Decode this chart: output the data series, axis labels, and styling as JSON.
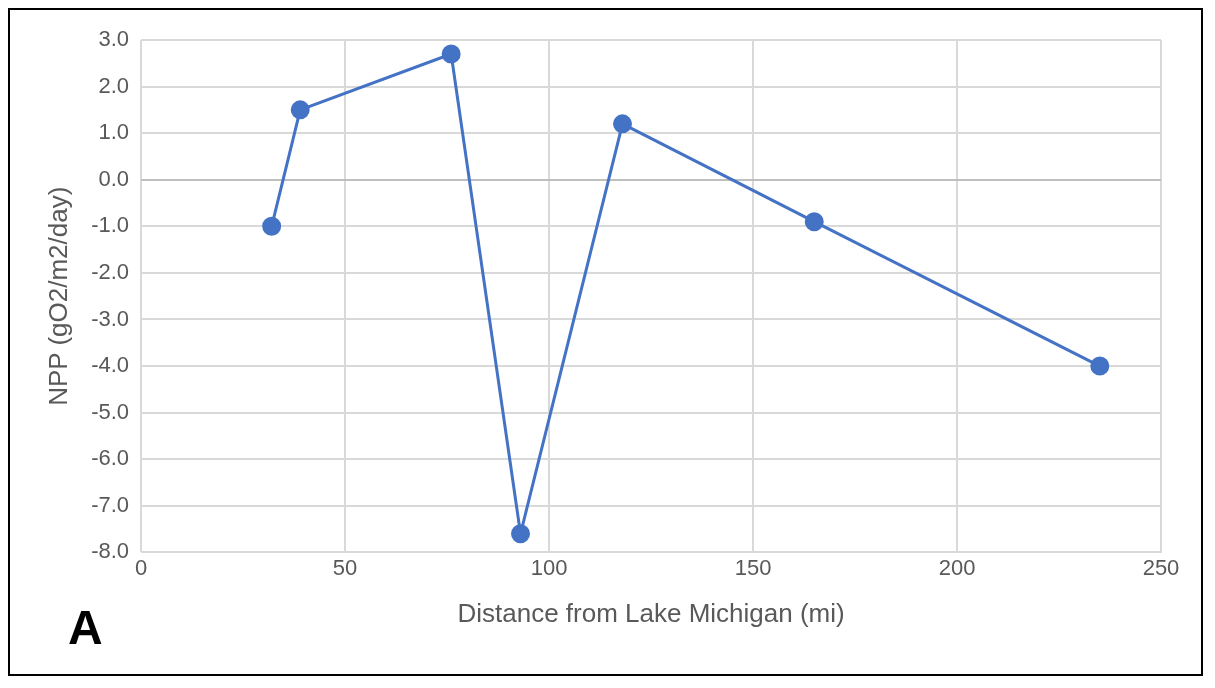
{
  "chart_data": {
    "type": "line",
    "xlabel": "Distance from Lake Michigan (mi)",
    "ylabel": "NPP (gO2/m2/day)",
    "x": [
      32,
      39,
      76,
      93,
      118,
      165,
      235
    ],
    "series": [
      {
        "color": "#4472c4",
        "values": [
          -1.0,
          1.5,
          2.7,
          -7.6,
          1.2,
          -0.9,
          -4.0
        ]
      }
    ],
    "xlim": [
      0,
      250
    ],
    "xticks": [
      0,
      50,
      100,
      150,
      200,
      250
    ],
    "ylim": [
      -8,
      3
    ],
    "yticks": [
      {
        "value": 3,
        "label": "3.0"
      },
      {
        "value": 2,
        "label": "2.0"
      },
      {
        "value": 1,
        "label": "1.0"
      },
      {
        "value": 0,
        "label": "0.0"
      },
      {
        "value": -1,
        "label": "-1.0"
      },
      {
        "value": -2,
        "label": "-2.0"
      },
      {
        "value": -3,
        "label": "-3.0"
      },
      {
        "value": -4,
        "label": "-4.0"
      },
      {
        "value": -5,
        "label": "-5.0"
      },
      {
        "value": -6,
        "label": "-6.0"
      },
      {
        "value": -7,
        "label": "-7.0"
      },
      {
        "value": -8,
        "label": "-8.0"
      }
    ],
    "grid": true,
    "marker": "circle",
    "line_style": "solid",
    "annotations": [
      "A"
    ]
  }
}
